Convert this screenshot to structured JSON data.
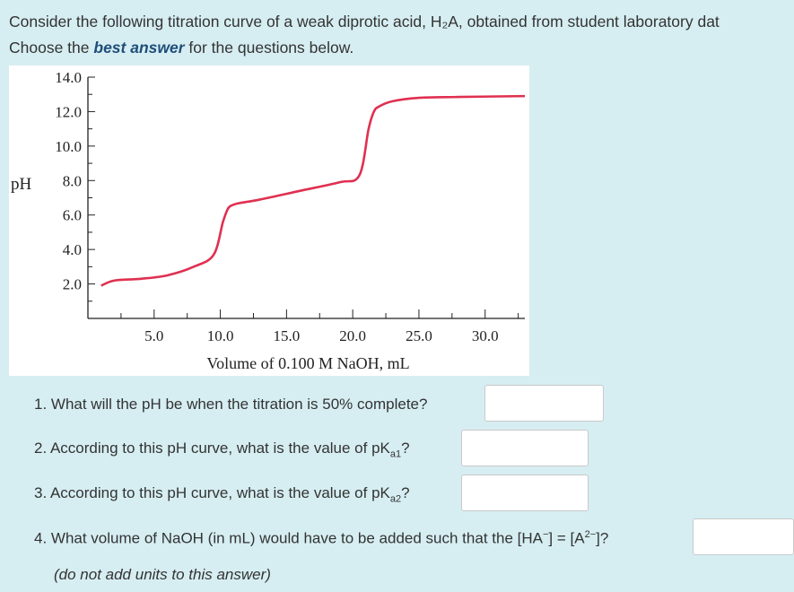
{
  "intro": {
    "line1": "Consider the following titration curve of a weak diprotic acid, H₂A, obtained from student laboratory dat",
    "line2_pre": "Choose the ",
    "line2_bold": "best answer",
    "line2_post": " for the questions below."
  },
  "chart_data": {
    "type": "line",
    "xlabel": "Volume of 0.100 M NaOH, mL",
    "ylabel": "pH",
    "xlim": [
      0,
      33
    ],
    "ylim": [
      0,
      14
    ],
    "xticks": [
      "5.0",
      "10.0",
      "15.0",
      "20.0",
      "25.0",
      "30.0"
    ],
    "yticks": [
      "2.0",
      "4.0",
      "6.0",
      "8.0",
      "10.0",
      "12.0",
      "14.0"
    ],
    "series": [
      {
        "color": "#e03050",
        "x": [
          1.0,
          2.0,
          4.0,
          6.0,
          8.0,
          9.5,
          10.2,
          10.6,
          11.0,
          11.5,
          13.0,
          16.0,
          19.0,
          20.5,
          21.2,
          21.6,
          22.0,
          23.0,
          25.0,
          28.0,
          33.0
        ],
        "y": [
          1.9,
          2.2,
          2.3,
          2.5,
          3.0,
          3.7,
          5.6,
          6.4,
          6.6,
          6.7,
          6.9,
          7.4,
          7.9,
          8.3,
          11.0,
          12.0,
          12.3,
          12.6,
          12.8,
          12.85,
          12.9
        ]
      }
    ]
  },
  "questions": [
    {
      "pre": "1. What will the pH be when the titration is 50% complete?",
      "mid": "",
      "sub": "",
      "post": ""
    },
    {
      "pre": "2. According to this pH curve, what is the value of pK",
      "sub": "a1",
      "post": "?"
    },
    {
      "pre": "3. According to this pH curve, what is the value of pK",
      "sub": "a2",
      "post": "?"
    },
    {
      "pre": "4. What volume of NaOH (in mL) would have to be added such that the [HA",
      "sup1": "−",
      "mid": "] = [A",
      "sup2": "2−",
      "post": "]?"
    }
  ],
  "note": "(do not add units to this answer)",
  "colors": {
    "background": "#d6eef2",
    "curve": "#e03050",
    "emphasis": "#1f4e79"
  }
}
